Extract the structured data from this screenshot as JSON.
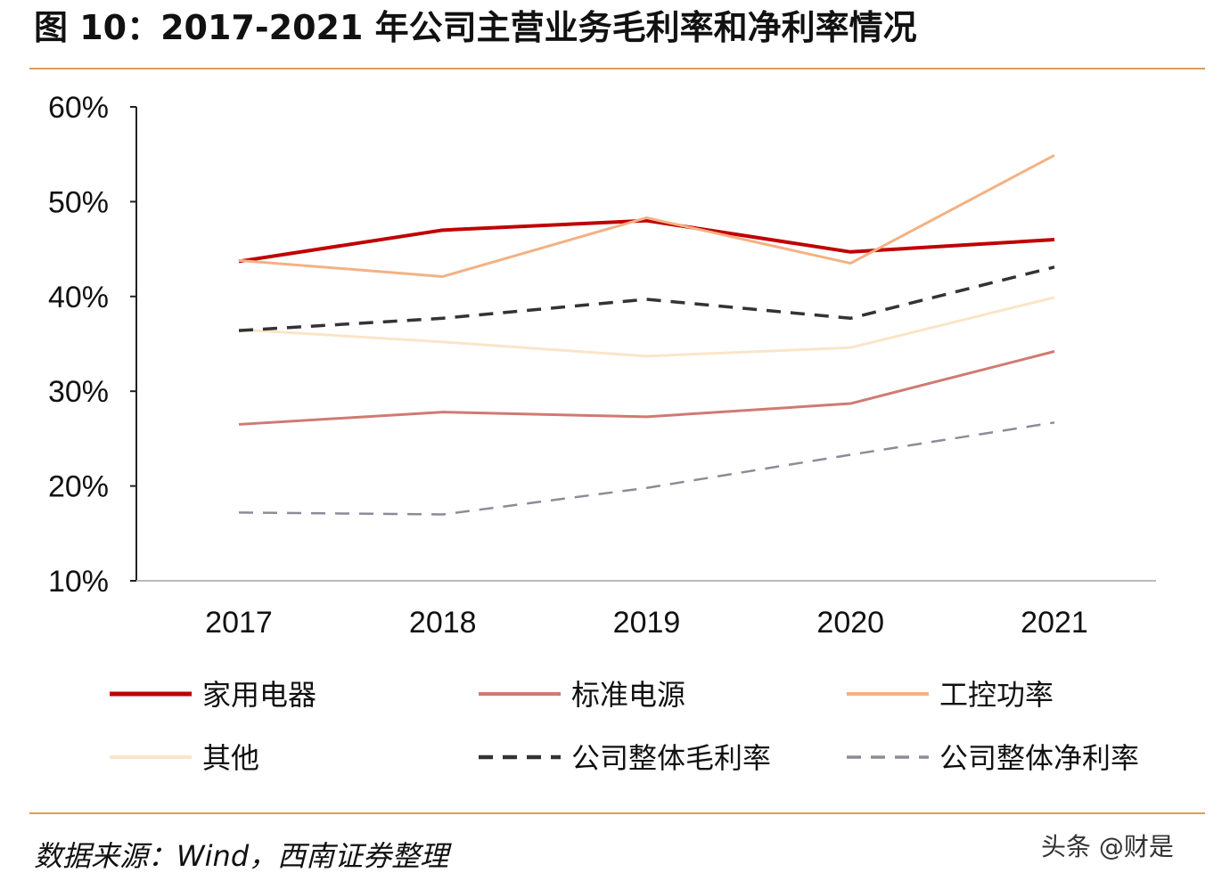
{
  "chart_data": {
    "type": "line",
    "title": "图 10：2017-2021 年公司主营业务毛利率和净利率情况",
    "xlabel": "",
    "ylabel": "",
    "categories": [
      "2017",
      "2018",
      "2019",
      "2020",
      "2021"
    ],
    "ylim": [
      10,
      60
    ],
    "yticks": [
      "10%",
      "20%",
      "30%",
      "40%",
      "50%",
      "60%"
    ],
    "grid": false,
    "legend_position": "bottom",
    "series": [
      {
        "name": "家用电器",
        "values": [
          43.7,
          47.0,
          48.0,
          44.7,
          46.0
        ],
        "color": "#c00000",
        "dash": false,
        "width": 4
      },
      {
        "name": "标准电源",
        "values": [
          26.5,
          27.8,
          27.3,
          28.7,
          34.2
        ],
        "color": "#d07a72",
        "dash": false,
        "width": 3
      },
      {
        "name": "工控功率",
        "values": [
          43.8,
          42.1,
          48.3,
          43.5,
          54.9
        ],
        "color": "#f4b183",
        "dash": false,
        "width": 3
      },
      {
        "name": "其他",
        "values": [
          36.5,
          35.2,
          33.7,
          34.6,
          39.9
        ],
        "color": "#fbe5c8",
        "dash": false,
        "width": 3
      },
      {
        "name": "公司整体毛利率",
        "values": [
          36.4,
          37.7,
          39.7,
          37.7,
          43.1
        ],
        "color": "#333333",
        "dash": true,
        "width": 3.5
      },
      {
        "name": "公司整体净利率",
        "values": [
          17.2,
          17.0,
          19.8,
          23.3,
          26.7
        ],
        "color": "#8c8c99",
        "dash": true,
        "width": 2.5
      }
    ]
  },
  "source": "数据来源：Wind，西南证券整理",
  "watermark": "头条 @财是",
  "colors": {
    "rule": "#d9a05b"
  }
}
